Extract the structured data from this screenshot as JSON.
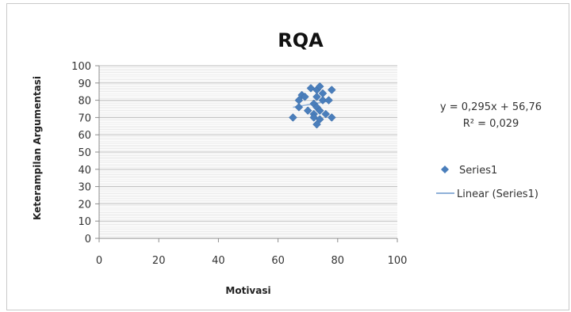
{
  "chart_data": {
    "type": "scatter",
    "title": "RQA",
    "xlabel": "Motivasi",
    "ylabel": "Keterampilan Argumentasi",
    "xlim": [
      0,
      100
    ],
    "ylim": [
      0,
      100
    ],
    "x_ticks": [
      0,
      20,
      40,
      60,
      80,
      100
    ],
    "y_ticks": [
      0,
      10,
      20,
      30,
      40,
      50,
      60,
      70,
      80,
      90,
      100
    ],
    "grid": true,
    "legend_position": "right",
    "series": [
      {
        "name": "Series1",
        "color": "#4a7ebb",
        "marker": "diamond",
        "points": [
          {
            "x": 65,
            "y": 70
          },
          {
            "x": 67,
            "y": 76
          },
          {
            "x": 67,
            "y": 80
          },
          {
            "x": 68,
            "y": 83
          },
          {
            "x": 69,
            "y": 82
          },
          {
            "x": 70,
            "y": 74
          },
          {
            "x": 71,
            "y": 87
          },
          {
            "x": 72,
            "y": 78
          },
          {
            "x": 72,
            "y": 72
          },
          {
            "x": 72,
            "y": 70
          },
          {
            "x": 73,
            "y": 86
          },
          {
            "x": 73,
            "y": 82
          },
          {
            "x": 73,
            "y": 76
          },
          {
            "x": 73,
            "y": 66
          },
          {
            "x": 74,
            "y": 88
          },
          {
            "x": 74,
            "y": 74
          },
          {
            "x": 74,
            "y": 69
          },
          {
            "x": 75,
            "y": 84
          },
          {
            "x": 75,
            "y": 80
          },
          {
            "x": 76,
            "y": 72
          },
          {
            "x": 77,
            "y": 80
          },
          {
            "x": 78,
            "y": 86
          },
          {
            "x": 78,
            "y": 70
          }
        ]
      }
    ],
    "trendline": {
      "name": "Linear (Series1)",
      "color": "#8fb0d8",
      "slope": 0.295,
      "intercept": 56.76
    },
    "equation_label": "y = 0,295x + 56,76",
    "r2_label": "R² = 0,029"
  }
}
